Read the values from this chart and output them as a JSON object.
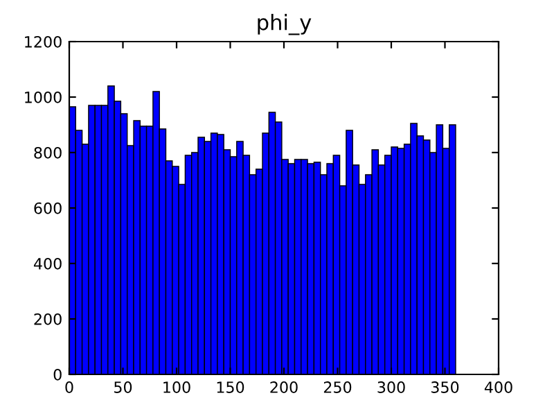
{
  "chart_data": {
    "type": "histogram",
    "title": "phi_y",
    "color": "#0000ff",
    "bins": [
      0,
      6,
      12,
      18,
      24,
      30,
      36,
      42,
      48,
      54,
      60,
      66,
      72,
      78,
      84,
      90,
      96,
      102,
      108,
      114,
      120,
      126,
      132,
      138,
      144,
      150,
      156,
      162,
      168,
      174,
      180,
      186,
      192,
      198,
      204,
      210,
      216,
      222,
      228,
      234,
      240,
      246,
      252,
      258,
      264,
      270,
      276,
      282,
      288,
      294,
      300,
      306,
      312,
      318,
      324,
      330,
      336,
      342,
      348,
      354,
      360
    ],
    "values": [
      965,
      880,
      830,
      970,
      970,
      970,
      1040,
      985,
      940,
      825,
      915,
      895,
      895,
      1020,
      885,
      770,
      750,
      685,
      790,
      800,
      855,
      840,
      870,
      865,
      810,
      785,
      840,
      790,
      720,
      740,
      870,
      945,
      910,
      775,
      760,
      775,
      775,
      760,
      765,
      720,
      760,
      790,
      680,
      880,
      755,
      685,
      720,
      810,
      755,
      790,
      820,
      815,
      830,
      905,
      860,
      845,
      800,
      900,
      815,
      900
    ],
    "xlim": [
      0,
      400
    ],
    "xticks": [
      0,
      50,
      100,
      150,
      200,
      250,
      300,
      350,
      400
    ],
    "ylim": [
      0,
      1200
    ],
    "yticks": [
      0,
      200,
      400,
      600,
      800,
      1000,
      1200
    ],
    "grid": false
  }
}
